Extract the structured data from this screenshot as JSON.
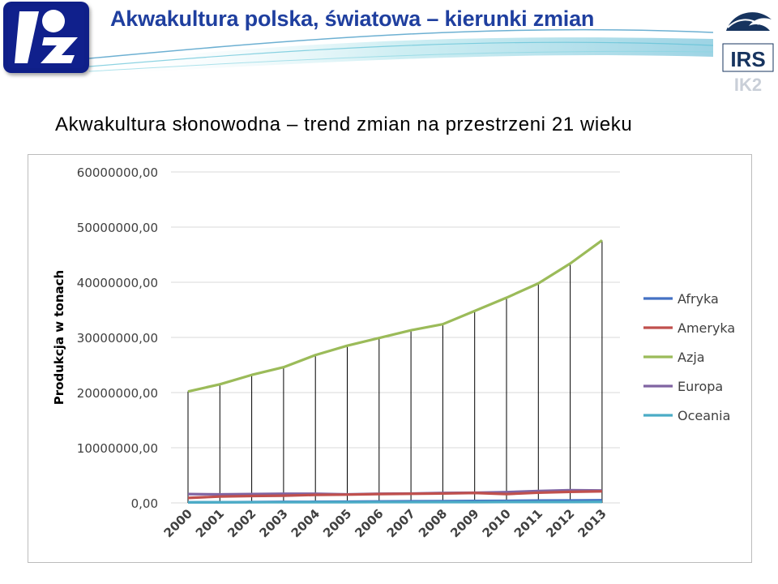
{
  "header": {
    "title": "Akwakultura polska, światowa – kierunki zmian",
    "logo_right_text": "IRS",
    "logo_right_subtext": "IK2"
  },
  "subtitle": "Akwakultura słonowodna – trend zmian na przestrzeni 21 wieku",
  "colors": {
    "title": "#1f3f9f",
    "afryka": "#4472c4",
    "ameryka": "#c0504d",
    "azja": "#9bbb59",
    "europa": "#8064a2",
    "oceania": "#4bacc6"
  },
  "chart_data": {
    "type": "line",
    "ylabel": "Produkcja w tonach",
    "xlabel": "",
    "ylim": [
      0,
      60000000
    ],
    "y_ticks": [
      0,
      10000000,
      20000000,
      30000000,
      40000000,
      50000000,
      60000000
    ],
    "y_tick_labels": [
      "0,00",
      "10000000,00",
      "20000000,00",
      "30000000,00",
      "40000000,00",
      "50000000,00",
      "60000000,00"
    ],
    "categories": [
      "2000",
      "2001",
      "2002",
      "2003",
      "2004",
      "2005",
      "2006",
      "2007",
      "2008",
      "2009",
      "2010",
      "2011",
      "2012",
      "2013"
    ],
    "grid": true,
    "drop_lines": true,
    "legend_position": "right",
    "series": [
      {
        "name": "Afryka",
        "color": "#4472c4",
        "values": [
          100000,
          120000,
          150000,
          180000,
          200000,
          230000,
          260000,
          290000,
          320000,
          350000,
          380000,
          420000,
          450000,
          480000
        ]
      },
      {
        "name": "Ameryka",
        "color": "#c0504d",
        "values": [
          900000,
          1150000,
          1250000,
          1300000,
          1450000,
          1500000,
          1600000,
          1650000,
          1700000,
          1800000,
          1600000,
          1850000,
          2000000,
          2100000
        ]
      },
      {
        "name": "Azja",
        "color": "#9bbb59",
        "values": [
          20200000,
          21500000,
          23200000,
          24600000,
          26800000,
          28500000,
          29900000,
          31300000,
          32400000,
          34800000,
          37200000,
          39800000,
          43400000,
          47600000
        ]
      },
      {
        "name": "Europa",
        "color": "#8064a2",
        "values": [
          1600000,
          1550000,
          1600000,
          1650000,
          1650000,
          1550000,
          1650000,
          1700000,
          1800000,
          1850000,
          1950000,
          2150000,
          2300000,
          2250000
        ]
      },
      {
        "name": "Oceania",
        "color": "#4bacc6",
        "values": [
          100000,
          110000,
          120000,
          120000,
          130000,
          130000,
          140000,
          140000,
          150000,
          150000,
          160000,
          170000,
          170000,
          180000
        ]
      }
    ]
  }
}
